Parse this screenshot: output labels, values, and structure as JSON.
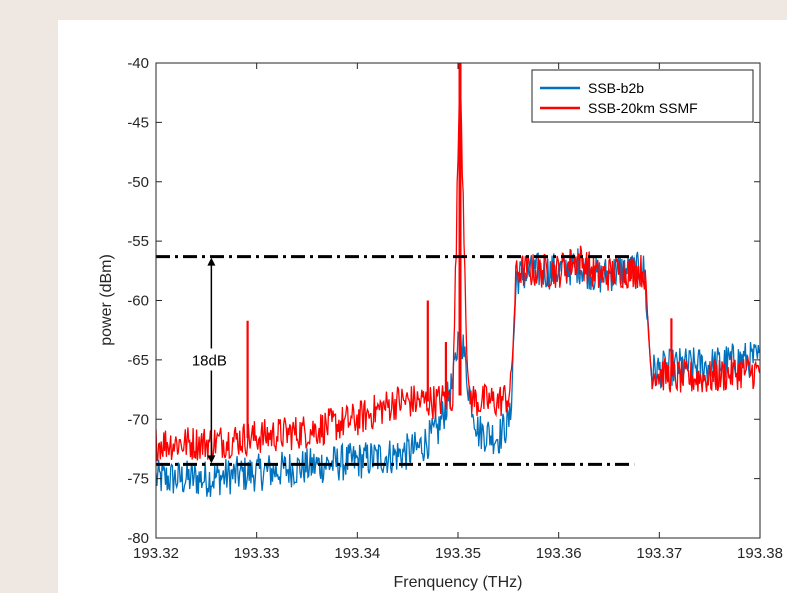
{
  "chart_data": {
    "type": "line",
    "title": "",
    "xlabel": "Frenquency (THz)",
    "ylabel": "power (dBm)",
    "xlim": [
      193.32,
      193.38
    ],
    "ylim": [
      -80,
      -40
    ],
    "x_ticks": [
      193.32,
      193.33,
      193.34,
      193.35,
      193.36,
      193.37,
      193.38
    ],
    "x_tick_labels": [
      "193.32",
      "193.33",
      "193.34",
      "193.35",
      "193.36",
      "193.37",
      "193.38"
    ],
    "y_ticks": [
      -80,
      -75,
      -70,
      -65,
      -60,
      -55,
      -50,
      -45,
      -40
    ],
    "y_tick_labels": [
      "-80",
      "-75",
      "-70",
      "-65",
      "-60",
      "-55",
      "-50",
      "-45",
      "-40"
    ],
    "grid": false,
    "legend_position": "top-right",
    "series": [
      {
        "name": "SSB-b2b",
        "color": "#0072bd",
        "x": [
          193.32,
          193.325,
          193.33,
          193.335,
          193.34,
          193.344,
          193.346,
          193.348,
          193.3495,
          193.3502,
          193.351,
          193.352,
          193.354,
          193.3552,
          193.3558,
          193.358,
          193.36,
          193.362,
          193.364,
          193.366,
          193.3685,
          193.3692,
          193.372,
          193.375,
          193.378,
          193.38
        ],
        "y": [
          -75,
          -75,
          -74.5,
          -74,
          -73.5,
          -73,
          -72.5,
          -71,
          -67,
          -62,
          -67,
          -71,
          -71.5,
          -70,
          -58,
          -57.5,
          -57.5,
          -57,
          -58,
          -57.5,
          -57.5,
          -66,
          -65.5,
          -65.5,
          -65,
          -65
        ]
      },
      {
        "name": "SSB-20km SSMF",
        "color": "#ff0000",
        "x": [
          193.32,
          193.325,
          193.33,
          193.335,
          193.34,
          193.344,
          193.346,
          193.348,
          193.3495,
          193.3502,
          193.351,
          193.352,
          193.354,
          193.3552,
          193.3558,
          193.358,
          193.36,
          193.362,
          193.364,
          193.366,
          193.3685,
          193.3692,
          193.372,
          193.375,
          193.378,
          193.38
        ],
        "y": [
          -72,
          -72,
          -71.5,
          -71,
          -70,
          -68.5,
          -68.5,
          -68.5,
          -68,
          -40,
          -68,
          -68.5,
          -68.5,
          -68,
          -57.5,
          -57.5,
          -57.5,
          -56.5,
          -58,
          -57.5,
          -57.5,
          -66,
          -66.5,
          -66.5,
          -66,
          -66
        ]
      }
    ],
    "annotations": [
      {
        "type": "dash-dot line",
        "y": -56.3,
        "x": [
          193.32,
          193.3675
        ],
        "color": "#000000"
      },
      {
        "type": "dash-dot line",
        "y": -73.8,
        "x": [
          193.32,
          193.3675
        ],
        "color": "#000000"
      },
      {
        "type": "double arrow",
        "x": 193.3255,
        "y": [
          -56.3,
          -73.8
        ],
        "label": "18dB"
      }
    ],
    "spurs": [
      {
        "series": "SSB-20km SSMF",
        "x": 193.3291,
        "y": -61.7
      },
      {
        "series": "SSB-20km SSMF",
        "x": 193.347,
        "y": -60
      },
      {
        "series": "SSB-20km SSMF",
        "x": 193.3488,
        "y": -63.5
      },
      {
        "series": "SSB-20km SSMF",
        "x": 193.3713,
        "y": -64.5
      },
      {
        "series": "SSB-20km SSMF",
        "x": 193.3712,
        "y": -61.5
      }
    ]
  }
}
